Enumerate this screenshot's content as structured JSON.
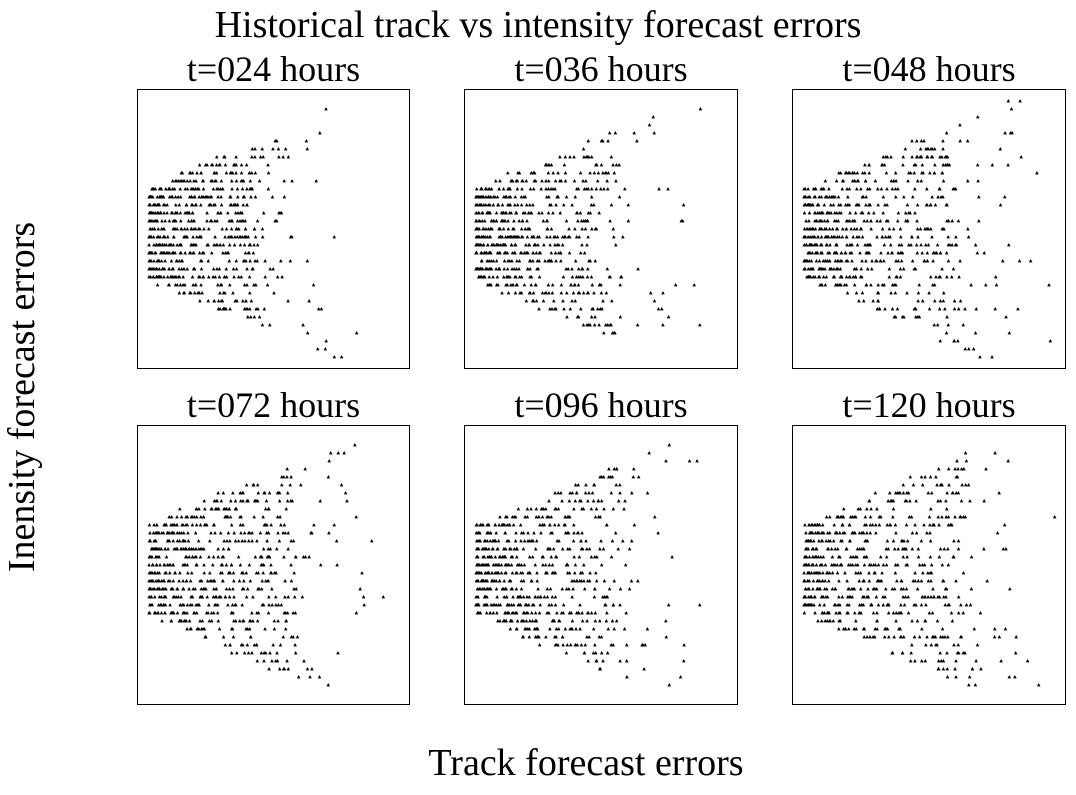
{
  "figure": {
    "suptitle": "Historical track vs intensity forecast errors",
    "xlabel": "Track forecast errors",
    "ylabel": "Inensity forecast errors"
  },
  "chart_data": [
    {
      "type": "scatter",
      "title": "t=024 hours",
      "xticks": false,
      "yticks": false,
      "marker": "triangle",
      "color": "#000000",
      "seed": 24,
      "spread": 0.42
    },
    {
      "type": "scatter",
      "title": "t=036 hours",
      "xticks": false,
      "yticks": false,
      "marker": "triangle",
      "color": "#000000",
      "seed": 36,
      "spread": 0.52
    },
    {
      "type": "scatter",
      "title": "t=048 hours",
      "xticks": false,
      "yticks": false,
      "marker": "triangle",
      "color": "#000000",
      "seed": 48,
      "spread": 0.62
    },
    {
      "type": "scatter",
      "title": "t=072 hours",
      "xticks": false,
      "yticks": false,
      "marker": "triangle",
      "color": "#000000",
      "seed": 72,
      "spread": 0.58
    },
    {
      "type": "scatter",
      "title": "t=096 hours",
      "xticks": false,
      "yticks": false,
      "marker": "triangle",
      "color": "#000000",
      "seed": 96,
      "spread": 0.56
    },
    {
      "type": "scatter",
      "title": "t=120 hours",
      "xticks": false,
      "yticks": false,
      "marker": "triangle",
      "color": "#000000",
      "seed": 120,
      "spread": 0.64
    }
  ]
}
